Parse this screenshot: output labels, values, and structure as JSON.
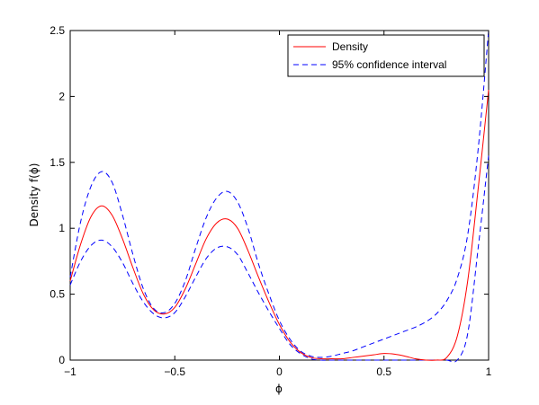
{
  "chart_data": {
    "type": "line",
    "title": "",
    "xlabel": "ϕ",
    "ylabel": "Density f(ϕ)",
    "xlim": [
      -1,
      1
    ],
    "ylim": [
      0,
      2.5
    ],
    "x_ticks": [
      -1,
      -0.5,
      0,
      0.5,
      1
    ],
    "x_tick_labels": [
      "−1",
      "−0.5",
      "0",
      "0.5",
      "1"
    ],
    "y_ticks": [
      0,
      0.5,
      1,
      1.5,
      2,
      2.5
    ],
    "y_tick_labels": [
      "0",
      "0.5",
      "1",
      "1.5",
      "2",
      "2.5"
    ],
    "grid": false,
    "legend_position": "top-right",
    "colors": {
      "density": "#ff0000",
      "interval": "#0000ff",
      "axes": "#000000"
    },
    "series": [
      {
        "name": "Density",
        "style": "solid",
        "x": [
          -1,
          -0.95,
          -0.9,
          -0.85,
          -0.8,
          -0.75,
          -0.7,
          -0.65,
          -0.6,
          -0.55,
          -0.5,
          -0.45,
          -0.4,
          -0.35,
          -0.3,
          -0.25,
          -0.2,
          -0.15,
          -0.1,
          -0.05,
          0,
          0.05,
          0.1,
          0.15,
          0.2,
          0.25,
          0.3,
          0.35,
          0.4,
          0.45,
          0.5,
          0.55,
          0.6,
          0.65,
          0.7,
          0.75,
          0.8,
          0.85,
          0.9,
          0.95,
          1
        ],
        "y": [
          0.6,
          0.88,
          1.09,
          1.17,
          1.1,
          0.92,
          0.7,
          0.5,
          0.38,
          0.35,
          0.4,
          0.54,
          0.73,
          0.92,
          1.04,
          1.07,
          1.0,
          0.83,
          0.63,
          0.44,
          0.27,
          0.14,
          0.06,
          0.02,
          0.01,
          0.01,
          0.01,
          0.02,
          0.03,
          0.04,
          0.05,
          0.045,
          0.03,
          0.01,
          0.0,
          0.0,
          0.02,
          0.18,
          0.6,
          1.3,
          2.05
        ]
      },
      {
        "name": "95% confidence interval",
        "style": "dashed",
        "x": [
          -1,
          -0.95,
          -0.9,
          -0.85,
          -0.8,
          -0.75,
          -0.7,
          -0.65,
          -0.6,
          -0.55,
          -0.5,
          -0.45,
          -0.4,
          -0.35,
          -0.3,
          -0.25,
          -0.2,
          -0.15,
          -0.1,
          -0.05,
          0,
          0.05,
          0.1,
          0.15,
          0.2,
          0.25,
          0.3,
          0.35,
          0.4,
          0.45,
          0.5,
          0.55,
          0.6,
          0.65,
          0.7,
          0.75,
          0.8,
          0.85,
          0.9,
          0.95,
          1
        ],
        "y": [
          0.63,
          1.05,
          1.32,
          1.43,
          1.35,
          1.1,
          0.8,
          0.54,
          0.39,
          0.36,
          0.43,
          0.6,
          0.85,
          1.08,
          1.23,
          1.28,
          1.2,
          1.0,
          0.73,
          0.5,
          0.3,
          0.16,
          0.07,
          0.03,
          0.02,
          0.03,
          0.05,
          0.07,
          0.1,
          0.13,
          0.16,
          0.19,
          0.22,
          0.25,
          0.29,
          0.35,
          0.45,
          0.62,
          0.95,
          1.6,
          2.5
        ]
      },
      {
        "name": "",
        "style": "dashed",
        "x": [
          -1,
          -0.95,
          -0.9,
          -0.85,
          -0.8,
          -0.75,
          -0.7,
          -0.65,
          -0.6,
          -0.55,
          -0.5,
          -0.45,
          -0.4,
          -0.35,
          -0.3,
          -0.25,
          -0.2,
          -0.15,
          -0.1,
          -0.05,
          0,
          0.05,
          0.1,
          0.15,
          0.2,
          0.25,
          0.3,
          0.35,
          0.4,
          0.45,
          0.5,
          0.55,
          0.6,
          0.65,
          0.7,
          0.75,
          0.8,
          0.85,
          0.9,
          0.95,
          1
        ],
        "y": [
          0.57,
          0.75,
          0.87,
          0.91,
          0.86,
          0.74,
          0.58,
          0.44,
          0.35,
          0.32,
          0.36,
          0.48,
          0.63,
          0.77,
          0.85,
          0.86,
          0.8,
          0.66,
          0.51,
          0.37,
          0.24,
          0.12,
          0.05,
          0.01,
          0.0,
          0.0,
          0.0,
          0.0,
          0.0,
          0.0,
          0.0,
          0.0,
          0.0,
          0.0,
          0.0,
          0.0,
          0.0,
          0.0,
          0.2,
          0.85,
          1.55
        ]
      }
    ]
  }
}
